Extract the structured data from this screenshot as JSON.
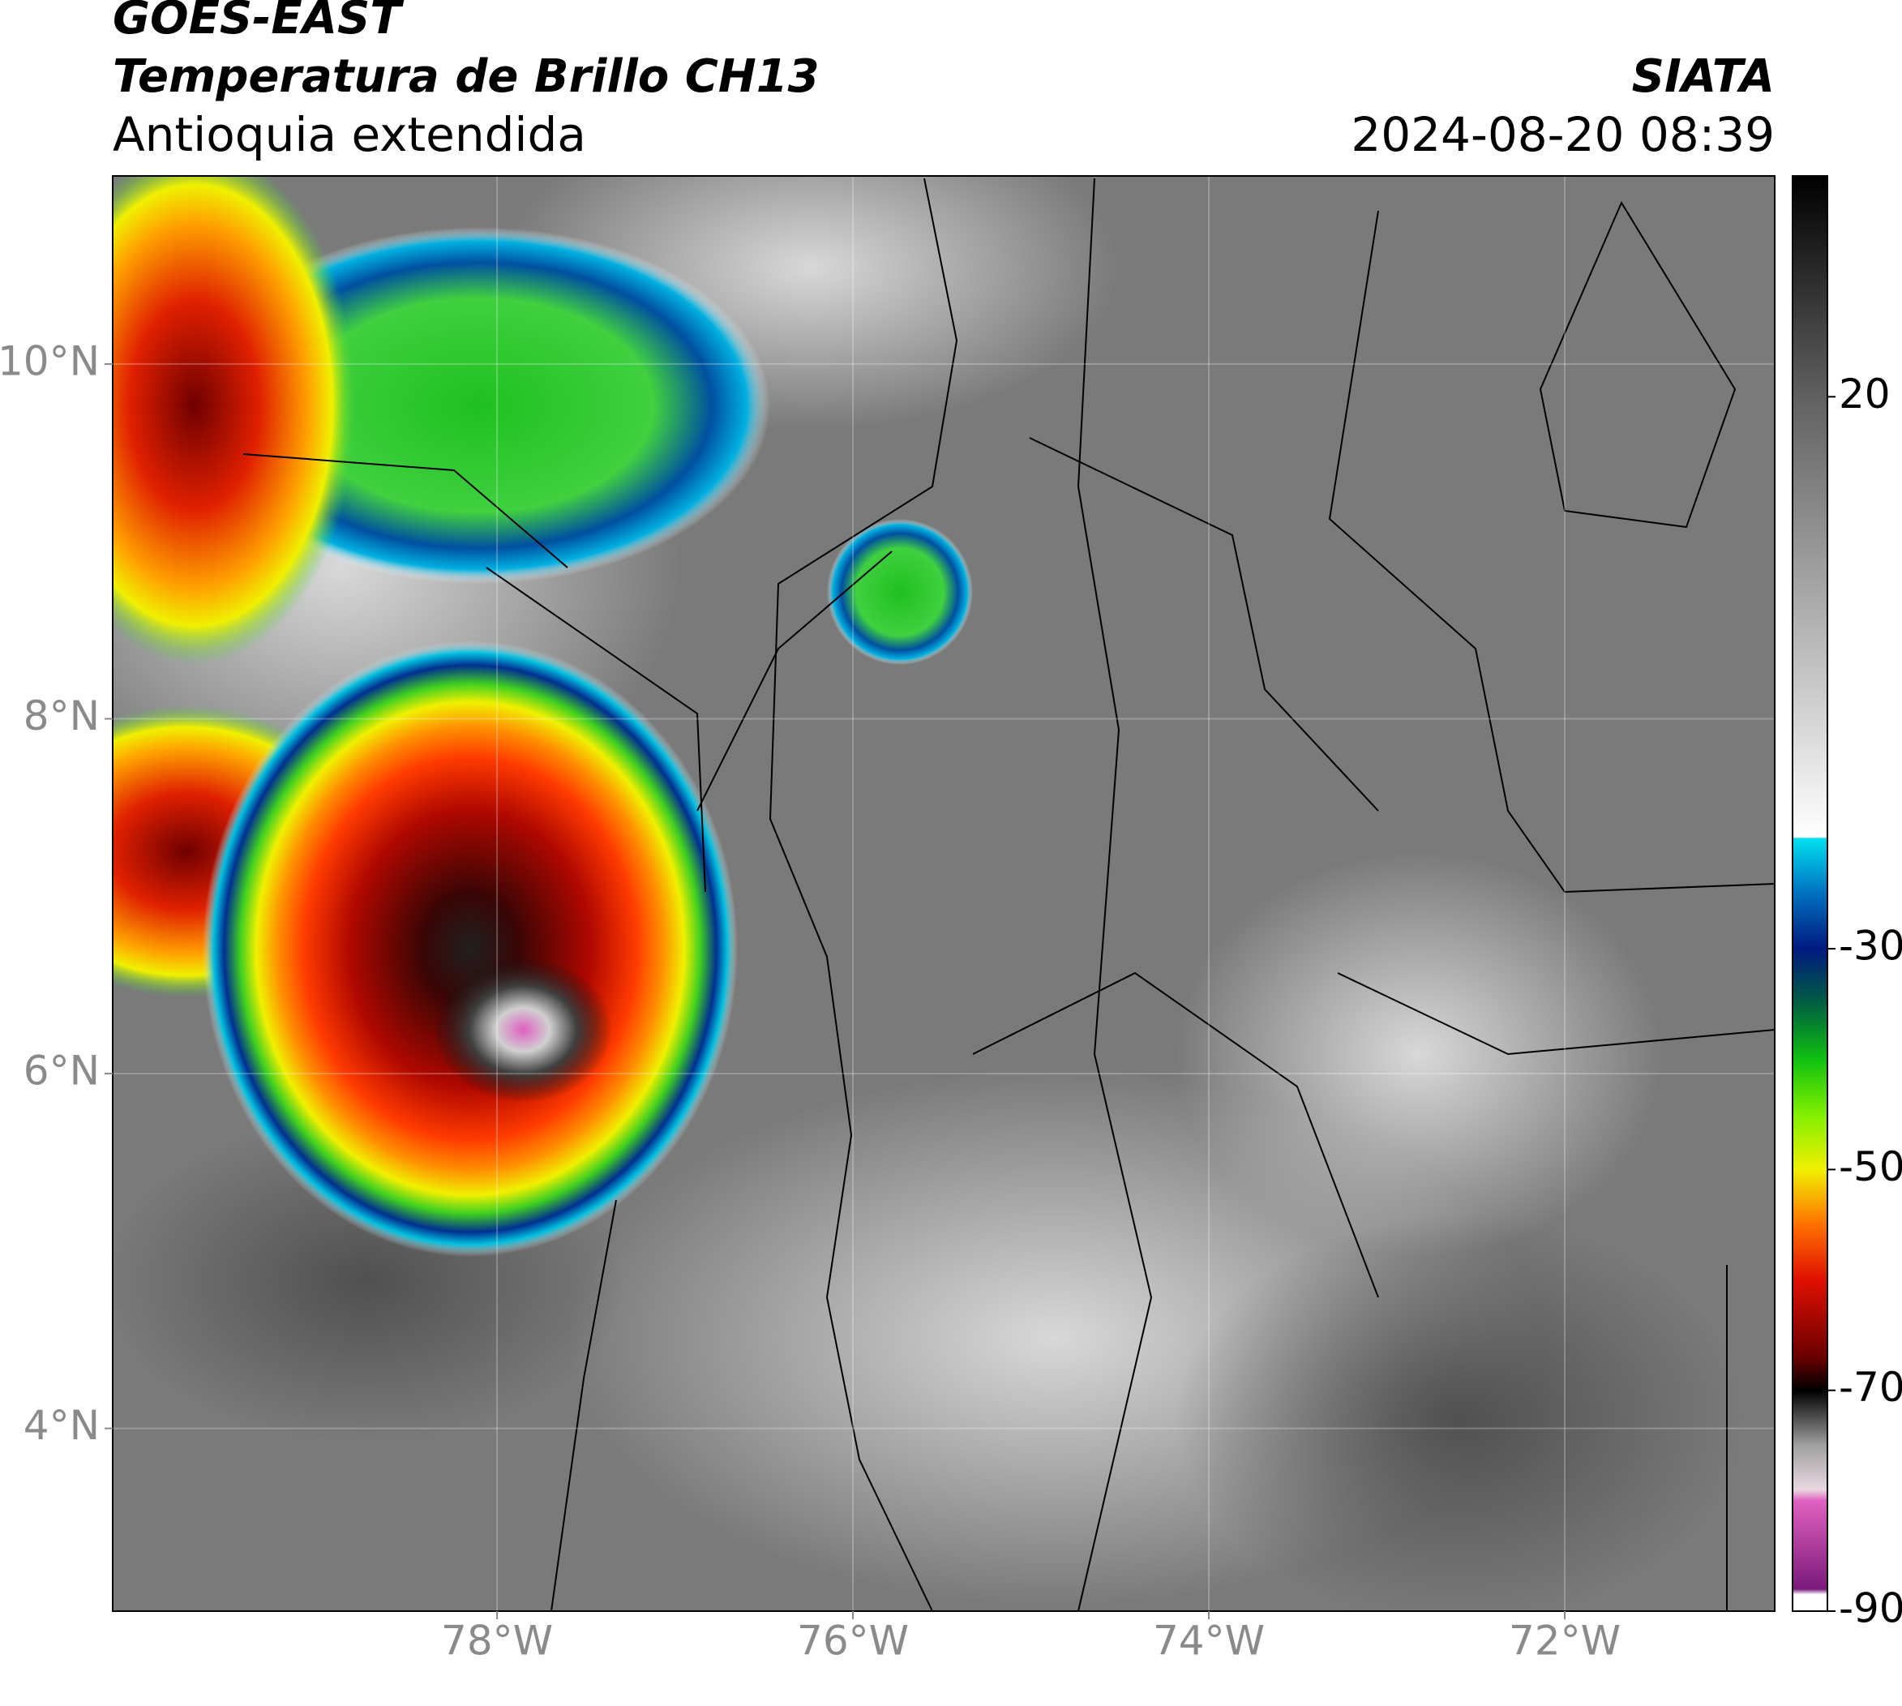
{
  "header": {
    "title": "GOES-EAST",
    "subtitle": "Temperatura de Brillo CH13",
    "region": "Antioquia extendida",
    "source": "SIATA",
    "timestamp": "2024-08-20 08:39"
  },
  "map": {
    "xlim": [
      -80.16,
      -70.82
    ],
    "ylim": [
      2.97,
      11.06
    ],
    "xticks": [
      {
        "value": -78,
        "label": "78°W"
      },
      {
        "value": -76,
        "label": "76°W"
      },
      {
        "value": -74,
        "label": "74°W"
      },
      {
        "value": -72,
        "label": "72°W"
      }
    ],
    "yticks": [
      {
        "value": 4,
        "label": "4°N"
      },
      {
        "value": 6,
        "label": "6°N"
      },
      {
        "value": 8,
        "label": "8°N"
      },
      {
        "value": 10,
        "label": "10°N"
      }
    ],
    "grid": true
  },
  "colorbar": {
    "clim": [
      -90,
      40
    ],
    "ticks": [
      20,
      -30,
      -50,
      -70,
      -90
    ],
    "stops": [
      {
        "value": -90,
        "color": "#ffffff"
      },
      {
        "value": -88.5,
        "color": "#ffffff"
      },
      {
        "value": -88,
        "color": "#7a1a7a"
      },
      {
        "value": -80,
        "color": "#e060c0"
      },
      {
        "value": -79,
        "color": "#e8d8e0"
      },
      {
        "value": -75,
        "color": "#a0a0a0"
      },
      {
        "value": -70,
        "color": "#000000"
      },
      {
        "value": -67,
        "color": "#6a0000"
      },
      {
        "value": -60,
        "color": "#e01000"
      },
      {
        "value": -55,
        "color": "#ff7000"
      },
      {
        "value": -50,
        "color": "#f0f000"
      },
      {
        "value": -45,
        "color": "#80f000"
      },
      {
        "value": -40,
        "color": "#10c010"
      },
      {
        "value": -35,
        "color": "#006040"
      },
      {
        "value": -30,
        "color": "#001a80"
      },
      {
        "value": -25,
        "color": "#0070c0"
      },
      {
        "value": -20,
        "color": "#00e0f0"
      },
      {
        "value": -19.9,
        "color": "#ffffff"
      },
      {
        "value": 0,
        "color": "#b0b0b0"
      },
      {
        "value": 20,
        "color": "#606060"
      },
      {
        "value": 40,
        "color": "#000000"
      }
    ]
  }
}
